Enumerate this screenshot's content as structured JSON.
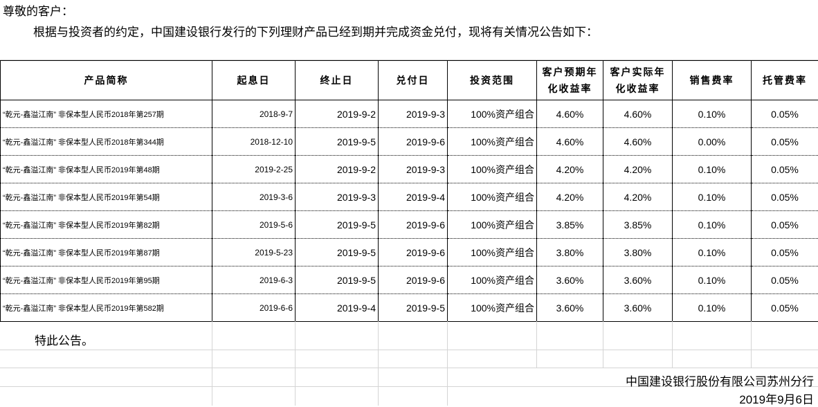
{
  "greeting": "尊敬的客户：",
  "intro": "根据与投资者的约定，中国建设银行发行的下列理财产品已经到期并完成资金兑付，现将有关情况公告如下：",
  "table": {
    "headers": [
      "产品简称",
      "起息日",
      "终止日",
      "兑付日",
      "投资范围",
      "客户预期年化收益率",
      "客户实际年化收益率",
      "销售费率",
      "托管费率"
    ],
    "header_lines": {
      "expected": [
        "客户预期年",
        "化收益率"
      ],
      "actual": [
        "客户实际年",
        "化收益率"
      ]
    },
    "rows": [
      [
        "“乾元-鑫溢江南” 非保本型人民币2018年第257期",
        "2018-9-7",
        "2019-9-2",
        "2019-9-3",
        "100%资产组合",
        "4.60%",
        "4.60%",
        "0.10%",
        "0.05%"
      ],
      [
        "“乾元-鑫溢江南” 非保本型人民币2018年第344期",
        "2018-12-10",
        "2019-9-5",
        "2019-9-6",
        "100%资产组合",
        "4.60%",
        "4.60%",
        "0.00%",
        "0.05%"
      ],
      [
        "“乾元-鑫溢江南” 非保本型人民币2019年第48期",
        "2019-2-25",
        "2019-9-2",
        "2019-9-3",
        "100%资产组合",
        "4.20%",
        "4.20%",
        "0.10%",
        "0.05%"
      ],
      [
        "“乾元-鑫溢江南” 非保本型人民币2019年第54期",
        "2019-3-6",
        "2019-9-3",
        "2019-9-4",
        "100%资产组合",
        "4.20%",
        "4.20%",
        "0.10%",
        "0.05%"
      ],
      [
        "“乾元-鑫溢江南” 非保本型人民币2019年第82期",
        "2019-5-6",
        "2019-9-5",
        "2019-9-6",
        "100%资产组合",
        "3.85%",
        "3.85%",
        "0.10%",
        "0.05%"
      ],
      [
        "“乾元-鑫溢江南” 非保本型人民币2019年第87期",
        "2019-5-23",
        "2019-9-5",
        "2019-9-6",
        "100%资产组合",
        "3.80%",
        "3.80%",
        "0.10%",
        "0.05%"
      ],
      [
        "“乾元-鑫溢江南” 非保本型人民币2019年第95期",
        "2019-6-3",
        "2019-9-5",
        "2019-9-6",
        "100%资产组合",
        "3.60%",
        "3.60%",
        "0.10%",
        "0.05%"
      ],
      [
        "“乾元-鑫溢江南” 非保本型人民币2019年第582期",
        "2019-6-6",
        "2019-9-4",
        "2019-9-5",
        "100%资产组合",
        "3.60%",
        "3.60%",
        "0.10%",
        "0.05%"
      ]
    ]
  },
  "closing": "特此公告。",
  "signature": "中国建设银行股份有限公司苏州分行",
  "date": "2019年9月6日"
}
